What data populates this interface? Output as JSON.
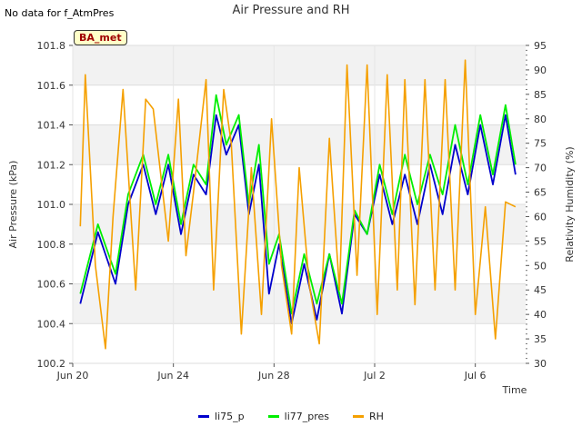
{
  "chart_data": {
    "type": "line",
    "title": "Air Pressure and RH",
    "xlabel": "Time",
    "ylabel": "Air Pressure (kPa)",
    "y2label": "Relativity Humidity (%)",
    "x_ticks": [
      "Jun 20",
      "Jun 24",
      "Jun 28",
      "Jul 2",
      "Jul 6"
    ],
    "x_tick_days": [
      0,
      4,
      8,
      12,
      16
    ],
    "xlim_days": [
      0,
      18
    ],
    "ylim": [
      100.2,
      101.8
    ],
    "y_ticks": [
      100.2,
      100.4,
      100.6,
      100.8,
      101.0,
      101.2,
      101.4,
      101.6,
      101.8
    ],
    "y2lim": [
      30,
      95
    ],
    "y2_ticks": [
      30,
      35,
      40,
      45,
      50,
      55,
      60,
      65,
      70,
      75,
      80,
      85,
      90,
      95
    ],
    "legend_placement": "bottom-center",
    "grid": true,
    "series": [
      {
        "name": "li75_p",
        "axis": "left",
        "color": "#0000cc",
        "x": [
          0.3,
          1.0,
          1.7,
          2.2,
          2.8,
          3.3,
          3.8,
          4.3,
          4.8,
          5.3,
          5.7,
          6.1,
          6.6,
          7.0,
          7.4,
          7.8,
          8.2,
          8.7,
          9.2,
          9.7,
          10.2,
          10.7,
          11.2,
          11.7,
          12.2,
          12.7,
          13.2,
          13.7,
          14.2,
          14.7,
          15.2,
          15.7,
          16.2,
          16.7,
          17.2,
          17.6
        ],
        "y": [
          100.5,
          100.86,
          100.6,
          101.0,
          101.2,
          100.95,
          101.2,
          100.85,
          101.15,
          101.05,
          101.45,
          101.25,
          101.4,
          100.95,
          101.2,
          100.55,
          100.8,
          100.4,
          100.7,
          100.42,
          100.75,
          100.45,
          100.95,
          100.85,
          101.15,
          100.9,
          101.15,
          100.9,
          101.2,
          100.95,
          101.3,
          101.05,
          101.4,
          101.1,
          101.45,
          101.15
        ]
      },
      {
        "name": "li77_pres",
        "axis": "left",
        "color": "#00ee00",
        "x": [
          0.3,
          1.0,
          1.7,
          2.2,
          2.8,
          3.3,
          3.8,
          4.3,
          4.8,
          5.3,
          5.7,
          6.1,
          6.6,
          7.0,
          7.4,
          7.8,
          8.2,
          8.7,
          9.2,
          9.7,
          10.2,
          10.7,
          11.2,
          11.7,
          12.2,
          12.7,
          13.2,
          13.7,
          14.2,
          14.7,
          15.2,
          15.7,
          16.2,
          16.7,
          17.2,
          17.6
        ],
        "y": [
          100.55,
          100.9,
          100.65,
          101.05,
          101.25,
          101.0,
          101.25,
          100.9,
          101.2,
          101.1,
          101.55,
          101.3,
          101.45,
          101.0,
          101.3,
          100.7,
          100.85,
          100.45,
          100.75,
          100.5,
          100.75,
          100.5,
          100.97,
          100.85,
          101.2,
          100.95,
          101.25,
          101.0,
          101.25,
          101.05,
          101.4,
          101.1,
          101.45,
          101.15,
          101.5,
          101.2
        ]
      },
      {
        "name": "RH",
        "axis": "right",
        "color": "#f5a000",
        "x": [
          0.3,
          0.5,
          0.9,
          1.3,
          1.6,
          2.0,
          2.5,
          2.9,
          3.2,
          3.8,
          4.2,
          4.5,
          4.8,
          5.3,
          5.6,
          6.0,
          6.3,
          6.7,
          7.1,
          7.5,
          7.9,
          8.3,
          8.7,
          9.0,
          9.4,
          9.8,
          10.2,
          10.6,
          10.9,
          11.3,
          11.7,
          12.1,
          12.5,
          12.9,
          13.2,
          13.6,
          14.0,
          14.4,
          14.8,
          15.2,
          15.6,
          16.0,
          16.4,
          16.8,
          17.2,
          17.6
        ],
        "y": [
          58,
          89,
          50,
          33,
          60,
          86,
          45,
          84,
          82,
          55,
          84,
          52,
          65,
          88,
          45,
          86,
          75,
          36,
          70,
          40,
          80,
          50,
          36,
          70,
          46,
          34,
          76,
          45,
          91,
          48,
          91,
          40,
          89,
          45,
          88,
          42,
          88,
          45,
          88,
          45,
          92,
          40,
          62,
          35,
          63,
          62
        ]
      }
    ]
  },
  "header": {
    "no_data_note": "No data for f_AtmPres",
    "station_badge": "BA_met"
  }
}
